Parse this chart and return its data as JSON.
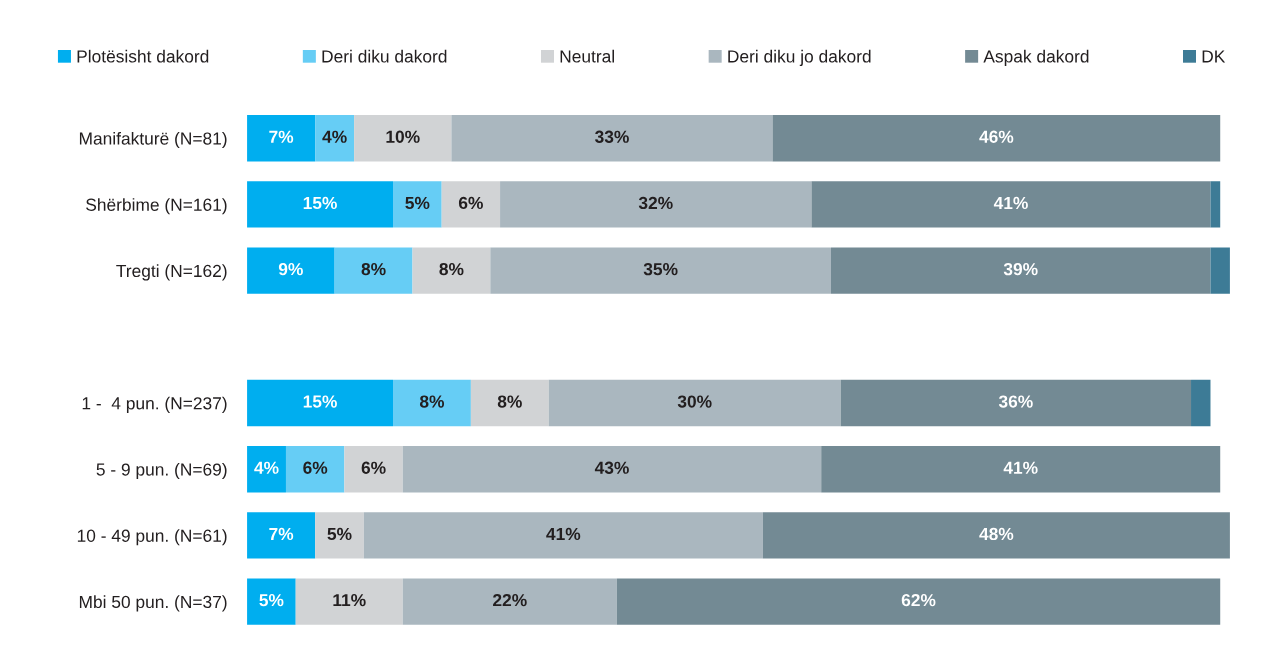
{
  "chart_data": {
    "type": "bar",
    "orientation": "horizontal",
    "stacked": true,
    "legend": "top",
    "tick_labels": "y",
    "categories": [
      "Manifakturë (N=81)",
      "Shërbime (N=161)",
      "Tregti (N=162)",
      null,
      "1 -  4 pun. (N=237)",
      "5 - 9 pun. (N=69)",
      "10 - 49 pun. (N=61)",
      "Mbi 50 pun. (N=37)"
    ],
    "series": [
      {
        "name": "Plotësisht dakord",
        "color": "#00aeef",
        "values": [
          7,
          15,
          9,
          null,
          15,
          4,
          7,
          5
        ],
        "value_labels": [
          "7%",
          "15%",
          "9%",
          null,
          "15%",
          "4%",
          "7%",
          "5%"
        ]
      },
      {
        "name": "Deri diku dakord",
        "color": "#66cdf5",
        "values": [
          4,
          5,
          8,
          null,
          8,
          6,
          null,
          null
        ],
        "value_labels": [
          "4%",
          "5%",
          "8%",
          null,
          "8%",
          "6%",
          null,
          null
        ]
      },
      {
        "name": "Neutral",
        "color": "#d1d3d5",
        "values": [
          10,
          6,
          8,
          null,
          8,
          6,
          5,
          11
        ],
        "value_labels": [
          "10%",
          "6%",
          "8%",
          null,
          "8%",
          "6%",
          "5%",
          "11%"
        ]
      },
      {
        "name": "Deri diku jo dakord",
        "color": "#aab7bf",
        "values": [
          33,
          32,
          35,
          null,
          30,
          43,
          41,
          22
        ],
        "value_labels": [
          "33%",
          "32%",
          "35%",
          null,
          "30%",
          "43%",
          "41%",
          "22%"
        ]
      },
      {
        "name": "Aspak dakord",
        "color": "#738a94",
        "values": [
          46,
          41,
          39,
          null,
          36,
          41,
          48,
          62
        ],
        "value_labels": [
          "46%",
          "41%",
          "39%",
          null,
          "36%",
          "41%",
          "48%",
          "62%"
        ]
      },
      {
        "name": "DK",
        "color": "#3d7b96",
        "values": [
          null,
          1,
          2,
          null,
          2,
          null,
          null,
          null
        ],
        "value_labels": [
          null,
          null,
          null,
          null,
          null,
          null,
          null,
          null
        ]
      }
    ]
  }
}
